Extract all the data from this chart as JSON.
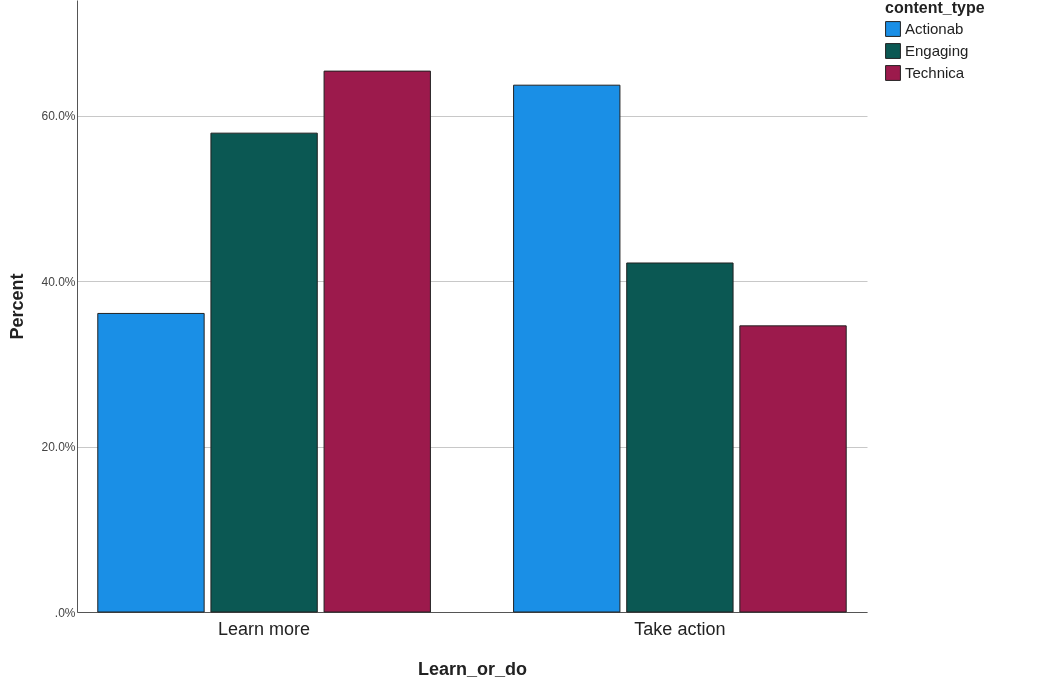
{
  "chart_data": {
    "type": "bar",
    "xlabel": "Learn_or_do",
    "ylabel": "Percent",
    "legend_title": "content_type",
    "categories": [
      "Learn more",
      "Take action"
    ],
    "series": [
      {
        "name": "Actionab",
        "color": "#1a8fe6",
        "values": [
          36.1,
          63.7
        ]
      },
      {
        "name": "Engaging",
        "color": "#0b5853",
        "values": [
          57.9,
          42.2
        ]
      },
      {
        "name": "Technica",
        "color": "#9c1a4c",
        "values": [
          65.4,
          34.6
        ]
      }
    ],
    "ylim": [
      0,
      74
    ],
    "yticks": [
      {
        "value": 0,
        "label": ".0%"
      },
      {
        "value": 20,
        "label": "20.0%"
      },
      {
        "value": 40,
        "label": "40.0%"
      },
      {
        "value": 60,
        "label": "60.0%"
      }
    ],
    "grid": "y",
    "legend": "top right"
  }
}
